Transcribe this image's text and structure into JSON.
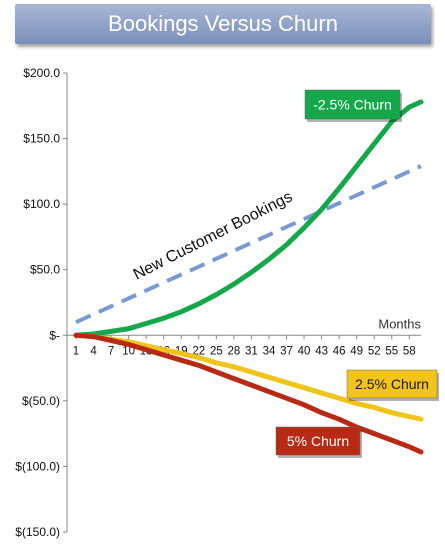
{
  "title": "Bookings Versus Churn",
  "chart_data": {
    "type": "line",
    "title": "Bookings Versus Churn",
    "xlabel": "Months",
    "ylabel": "",
    "x_ticks": [
      1,
      4,
      7,
      10,
      13,
      16,
      19,
      22,
      25,
      28,
      31,
      34,
      37,
      40,
      43,
      46,
      49,
      52,
      55,
      58
    ],
    "xlim": [
      1,
      60
    ],
    "ylim": [
      -150,
      200
    ],
    "y_ticks": [
      {
        "value": 200,
        "label": "$200.0"
      },
      {
        "value": 150,
        "label": "$150.0"
      },
      {
        "value": 100,
        "label": "$100.0"
      },
      {
        "value": 50,
        "label": "$50.0"
      },
      {
        "value": 0,
        "label": "$-"
      },
      {
        "value": -50,
        "label": "$(50.0)"
      },
      {
        "value": -100,
        "label": "$(100.0)"
      },
      {
        "value": -150,
        "label": "$(150.0)"
      }
    ],
    "grid": false,
    "series": [
      {
        "name": "New Customer Bookings",
        "color": "#7b9ad4",
        "dashed": true,
        "x": [
          1,
          60
        ],
        "y": [
          10,
          129
        ]
      },
      {
        "name": "-2.5% Churn",
        "color": "#14a84a",
        "dashed": false,
        "x": [
          1,
          4,
          7,
          10,
          13,
          16,
          19,
          22,
          25,
          28,
          31,
          34,
          37,
          40,
          43,
          46,
          49,
          52,
          55,
          58,
          60
        ],
        "y": [
          0,
          1,
          3,
          5,
          9,
          13,
          18,
          24,
          31,
          39,
          48,
          58,
          69,
          82,
          96,
          112,
          129,
          146,
          163,
          174,
          178
        ]
      },
      {
        "name": "2.5% Churn",
        "color": "#f2c318",
        "dashed": false,
        "x": [
          1,
          4,
          7,
          10,
          13,
          16,
          19,
          22,
          25,
          28,
          31,
          34,
          37,
          40,
          43,
          46,
          49,
          52,
          55,
          58,
          60
        ],
        "y": [
          0,
          -1,
          -3,
          -5,
          -8,
          -11,
          -14,
          -17,
          -21,
          -24,
          -28,
          -32,
          -36,
          -40,
          -44,
          -48,
          -52,
          -55,
          -59,
          -62,
          -64
        ]
      },
      {
        "name": "5% Churn",
        "color": "#b82a14",
        "dashed": false,
        "x": [
          1,
          4,
          7,
          10,
          13,
          16,
          19,
          22,
          25,
          28,
          31,
          34,
          37,
          40,
          43,
          46,
          49,
          52,
          55,
          58,
          60
        ],
        "y": [
          0,
          -1,
          -4,
          -7,
          -11,
          -15,
          -19,
          -23,
          -28,
          -33,
          -38,
          -43,
          -48,
          -53,
          -59,
          -64,
          -70,
          -75,
          -80,
          -85,
          -89
        ]
      }
    ],
    "annotations": [
      {
        "text": "-2.5% Churn",
        "series": "-2.5% Churn",
        "box": "#14a84a",
        "text_color": "#ffffff"
      },
      {
        "text": "2.5% Churn",
        "series": "2.5% Churn",
        "box": "#f2c318",
        "text_color": "#1a1a1a"
      },
      {
        "text": "5% Churn",
        "series": "5% Churn",
        "box": "#b82a14",
        "text_color": "#ffffff"
      },
      {
        "text": "New Customer Bookings",
        "series": "New Customer Bookings"
      }
    ]
  }
}
